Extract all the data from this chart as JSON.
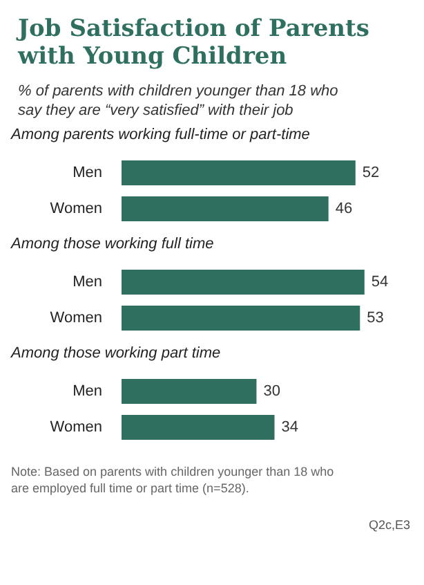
{
  "chart_data": {
    "type": "bar",
    "orientation": "horizontal",
    "tick_labels": "y",
    "title": "Job Satisfaction of Parents with Young Children",
    "subtitle": "% of parents with children younger than 18 who say they are “very satisfied” with their job",
    "categories": [
      "Men",
      "Women",
      "Men",
      "Women",
      "Men",
      "Women"
    ],
    "values": [
      52,
      46,
      54,
      53,
      30,
      34
    ],
    "color": "#2f6f60",
    "data_labels": true,
    "annotations": [
      "Among parents working full-time or part-time",
      "Among those working full time",
      "Among those working part time",
      "Note: Based on parents with children younger than 18 who are employed full time or part time (n=528).",
      "Q2c,E3"
    ]
  }
}
